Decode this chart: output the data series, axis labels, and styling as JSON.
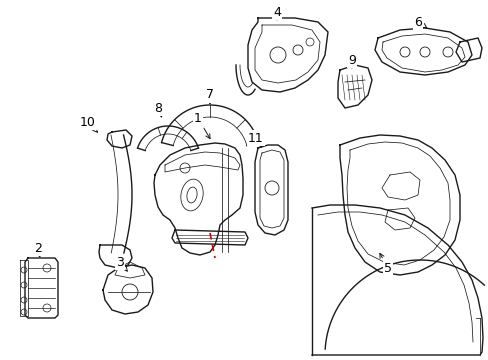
{
  "bg_color": "#ffffff",
  "line_color": "#1a1a1a",
  "red_line_color": "#cc0000",
  "label_color": "#000000",
  "font_size_num": 9
}
